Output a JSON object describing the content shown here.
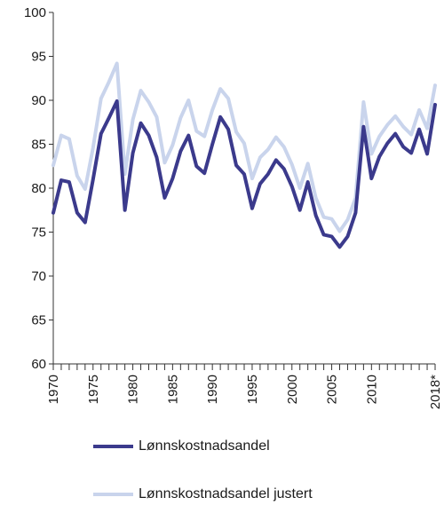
{
  "chart_data": {
    "type": "line",
    "title": "",
    "xlabel": "",
    "ylabel": "",
    "ylim": [
      60,
      100
    ],
    "yticks": [
      60,
      65,
      70,
      75,
      80,
      85,
      90,
      95,
      100
    ],
    "xlim": [
      1970,
      2018
    ],
    "xtick_labels": [
      {
        "year": 1970,
        "label": "1970"
      },
      {
        "year": 1975,
        "label": "1975"
      },
      {
        "year": 1980,
        "label": "1980"
      },
      {
        "year": 1985,
        "label": "1985"
      },
      {
        "year": 1990,
        "label": "1990"
      },
      {
        "year": 1995,
        "label": "1995"
      },
      {
        "year": 2000,
        "label": "2000"
      },
      {
        "year": 2005,
        "label": "2005"
      },
      {
        "year": 2010,
        "label": "2010"
      },
      {
        "year": 2018,
        "label": "2018*"
      }
    ],
    "grid": false,
    "legend_position": "bottom",
    "x": [
      1970,
      1971,
      1972,
      1973,
      1974,
      1975,
      1976,
      1977,
      1978,
      1979,
      1980,
      1981,
      1982,
      1983,
      1984,
      1985,
      1986,
      1987,
      1988,
      1989,
      1990,
      1991,
      1992,
      1993,
      1994,
      1995,
      1996,
      1997,
      1998,
      1999,
      2000,
      2001,
      2002,
      2003,
      2004,
      2005,
      2006,
      2007,
      2008,
      2009,
      2010,
      2011,
      2012,
      2013,
      2014,
      2015,
      2016,
      2017,
      2018
    ],
    "series": [
      {
        "name": "Lønnskostnadsandel",
        "color": "#3b3a8c",
        "values": [
          77.2,
          80.9,
          80.7,
          77.2,
          76.1,
          81.0,
          86.2,
          88.0,
          89.9,
          77.5,
          84.0,
          87.4,
          86.0,
          83.5,
          78.9,
          81.1,
          84.2,
          86.0,
          82.5,
          81.7,
          85.0,
          88.1,
          86.7,
          82.6,
          81.6,
          77.7,
          80.5,
          81.6,
          83.2,
          82.2,
          80.2,
          77.5,
          80.7,
          76.9,
          74.7,
          74.5,
          73.3,
          74.5,
          77.2,
          87.0,
          81.1,
          83.6,
          85.1,
          86.2,
          84.7,
          84.0,
          86.7,
          83.9,
          89.5
        ]
      },
      {
        "name": "Lønnskostnadsandel justert",
        "color": "#c9d4ec",
        "values": [
          82.6,
          86.0,
          85.6,
          81.4,
          79.9,
          84.6,
          90.2,
          92.1,
          94.2,
          81.6,
          87.8,
          91.1,
          89.8,
          88.1,
          82.9,
          84.9,
          88.0,
          90.0,
          86.5,
          85.9,
          88.9,
          91.3,
          90.2,
          86.4,
          85.1,
          81.1,
          83.5,
          84.4,
          85.8,
          84.7,
          82.7,
          80.0,
          82.8,
          78.9,
          76.7,
          76.5,
          75.1,
          76.4,
          78.9,
          89.8,
          83.9,
          85.9,
          87.2,
          88.2,
          87.0,
          86.1,
          88.9,
          86.8,
          91.7
        ]
      }
    ]
  }
}
